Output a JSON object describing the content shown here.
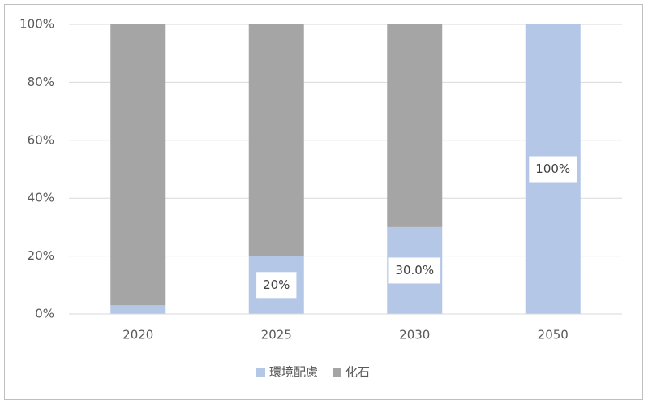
{
  "chart_data": {
    "type": "stacked_bar",
    "categories": [
      "2020",
      "2025",
      "2030",
      "2050"
    ],
    "series": [
      {
        "name": "環境配慮",
        "color": "#b4c7e7",
        "values": [
          3,
          20,
          30,
          100
        ],
        "value_labels": [
          null,
          "20%",
          "30.0%",
          "100%"
        ]
      },
      {
        "name": "化石",
        "color": "#a5a5a5",
        "values": [
          97,
          80,
          70,
          0
        ]
      }
    ],
    "ylim": [
      0,
      100
    ],
    "yticks": [
      {
        "value": 0,
        "label": "0%"
      },
      {
        "value": 20,
        "label": "20%"
      },
      {
        "value": 40,
        "label": "40%"
      },
      {
        "value": 60,
        "label": "60%"
      },
      {
        "value": 80,
        "label": "80%"
      },
      {
        "value": 100,
        "label": "100%"
      }
    ],
    "grid": true,
    "legend": "bottom"
  }
}
